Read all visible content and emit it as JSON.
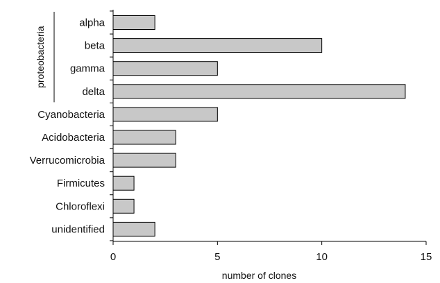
{
  "chart_data": {
    "type": "bar",
    "orientation": "horizontal",
    "categories": [
      "alpha",
      "beta",
      "gamma",
      "delta",
      "Cyanobacteria",
      "Acidobacteria",
      "Verrucomicrobia",
      "Firmicutes",
      "Chloroflexi",
      "unidentified"
    ],
    "values": [
      2,
      10,
      5,
      14,
      5,
      3,
      3,
      1,
      1,
      2
    ],
    "xlabel": "number of clones",
    "ylabel": "",
    "xlim": [
      0,
      15
    ],
    "xticks": [
      "0",
      "5",
      "10",
      "15"
    ],
    "group_label": "proteobacteria",
    "grid": false,
    "bar_color": "#c8c8c8"
  }
}
